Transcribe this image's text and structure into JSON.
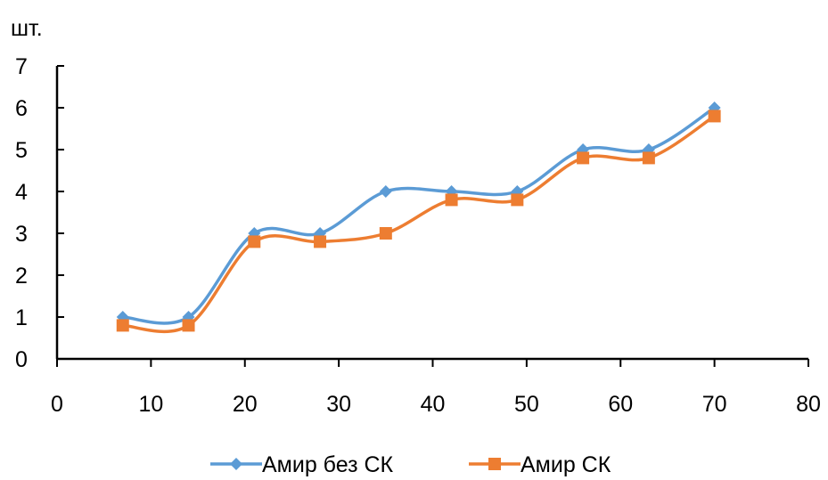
{
  "chart_data": {
    "type": "line",
    "title": "",
    "xlabel": "",
    "ylabel": "шт.",
    "xlim": [
      0,
      80
    ],
    "ylim": [
      0,
      7
    ],
    "x_ticks": [
      0,
      10,
      20,
      30,
      40,
      50,
      60,
      70,
      80
    ],
    "y_ticks": [
      0,
      1,
      2,
      3,
      4,
      5,
      6,
      7
    ],
    "smooth": true,
    "grid": false,
    "legend_position": "bottom",
    "series": [
      {
        "name": "Амир без СК",
        "color": "#5B9BD5",
        "marker": "diamond",
        "x": [
          7,
          14,
          21,
          28,
          35,
          42,
          49,
          56,
          63,
          70
        ],
        "y": [
          1,
          1,
          3,
          3,
          4,
          4,
          4,
          5,
          5,
          6
        ]
      },
      {
        "name": "Амир СК",
        "color": "#ED7D31",
        "marker": "square",
        "x": [
          7,
          14,
          21,
          28,
          35,
          42,
          49,
          56,
          63,
          70
        ],
        "y": [
          0.8,
          0.8,
          2.8,
          2.8,
          3,
          3.8,
          3.8,
          4.8,
          4.8,
          5.8
        ]
      }
    ]
  }
}
